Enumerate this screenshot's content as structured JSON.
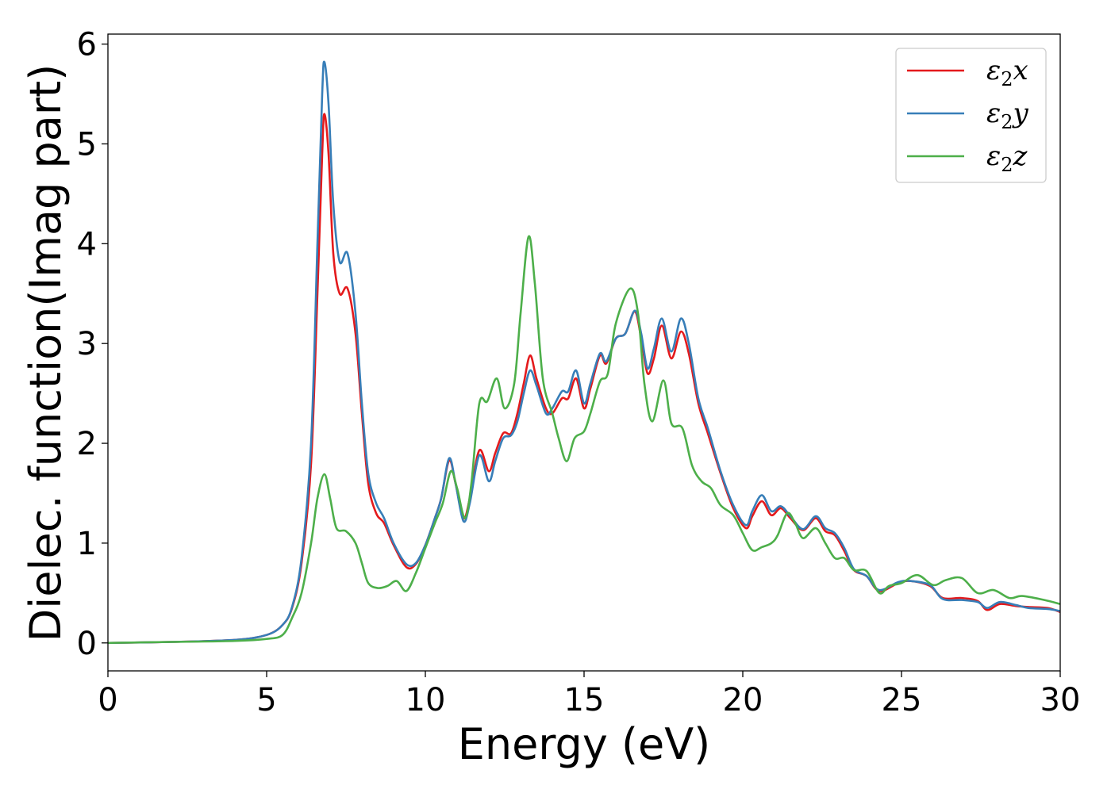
{
  "chart_data": {
    "type": "line",
    "title": "",
    "xlabel": "Energy (eV)",
    "ylabel": "Dielec. function(Imag part)",
    "xlim": [
      0,
      30
    ],
    "ylim": [
      -0.28,
      6.1
    ],
    "grid": false,
    "legend_position": "top-right",
    "x_ticks": [
      "0",
      "5",
      "10",
      "15",
      "20",
      "25",
      "30"
    ],
    "y_ticks": [
      "0",
      "1",
      "2",
      "3",
      "4",
      "5",
      "6"
    ],
    "series": [
      {
        "name": "ε₂x",
        "legend": {
          "base": "ε",
          "sub": "2",
          "comp": "x"
        },
        "color": "#e41a1c",
        "points": [
          [
            0,
            0
          ],
          [
            2,
            0.01
          ],
          [
            4,
            0.03
          ],
          [
            5,
            0.08
          ],
          [
            5.5,
            0.18
          ],
          [
            5.8,
            0.35
          ],
          [
            6.1,
            0.8
          ],
          [
            6.4,
            1.8
          ],
          [
            6.6,
            3.5
          ],
          [
            6.75,
            4.9
          ],
          [
            6.82,
            5.3
          ],
          [
            6.95,
            4.9
          ],
          [
            7.1,
            3.9
          ],
          [
            7.3,
            3.5
          ],
          [
            7.55,
            3.55
          ],
          [
            7.8,
            3.1
          ],
          [
            8.0,
            2.3
          ],
          [
            8.2,
            1.6
          ],
          [
            8.45,
            1.3
          ],
          [
            8.7,
            1.2
          ],
          [
            9.0,
            0.98
          ],
          [
            9.4,
            0.76
          ],
          [
            9.7,
            0.79
          ],
          [
            10.0,
            0.98
          ],
          [
            10.3,
            1.25
          ],
          [
            10.5,
            1.45
          ],
          [
            10.75,
            1.83
          ],
          [
            10.95,
            1.6
          ],
          [
            11.2,
            1.25
          ],
          [
            11.4,
            1.45
          ],
          [
            11.7,
            1.93
          ],
          [
            12.0,
            1.72
          ],
          [
            12.2,
            1.9
          ],
          [
            12.45,
            2.1
          ],
          [
            12.7,
            2.1
          ],
          [
            12.9,
            2.3
          ],
          [
            13.1,
            2.6
          ],
          [
            13.3,
            2.88
          ],
          [
            13.5,
            2.65
          ],
          [
            13.8,
            2.35
          ],
          [
            14.0,
            2.3
          ],
          [
            14.3,
            2.45
          ],
          [
            14.5,
            2.45
          ],
          [
            14.75,
            2.65
          ],
          [
            15.0,
            2.35
          ],
          [
            15.2,
            2.55
          ],
          [
            15.5,
            2.88
          ],
          [
            15.7,
            2.8
          ],
          [
            16.0,
            3.05
          ],
          [
            16.3,
            3.1
          ],
          [
            16.6,
            3.32
          ],
          [
            16.8,
            3.05
          ],
          [
            17.0,
            2.7
          ],
          [
            17.2,
            2.85
          ],
          [
            17.45,
            3.18
          ],
          [
            17.75,
            2.85
          ],
          [
            18.05,
            3.12
          ],
          [
            18.3,
            2.9
          ],
          [
            18.6,
            2.4
          ],
          [
            18.9,
            2.1
          ],
          [
            19.3,
            1.7
          ],
          [
            19.7,
            1.35
          ],
          [
            20.1,
            1.15
          ],
          [
            20.3,
            1.27
          ],
          [
            20.6,
            1.42
          ],
          [
            20.9,
            1.28
          ],
          [
            21.2,
            1.35
          ],
          [
            21.5,
            1.25
          ],
          [
            21.9,
            1.13
          ],
          [
            22.3,
            1.25
          ],
          [
            22.6,
            1.12
          ],
          [
            22.9,
            1.08
          ],
          [
            23.2,
            0.92
          ],
          [
            23.5,
            0.73
          ],
          [
            23.9,
            0.67
          ],
          [
            24.3,
            0.52
          ],
          [
            24.9,
            0.6
          ],
          [
            25.3,
            0.62
          ],
          [
            25.9,
            0.57
          ],
          [
            26.3,
            0.45
          ],
          [
            26.9,
            0.45
          ],
          [
            27.4,
            0.42
          ],
          [
            27.7,
            0.33
          ],
          [
            28.1,
            0.39
          ],
          [
            28.6,
            0.37
          ],
          [
            29.0,
            0.36
          ],
          [
            29.6,
            0.35
          ],
          [
            30.0,
            0.31
          ]
        ]
      },
      {
        "name": "ε₂y",
        "legend": {
          "base": "ε",
          "sub": "2",
          "comp": "y"
        },
        "color": "#377eb8",
        "points": [
          [
            0,
            0
          ],
          [
            2,
            0.01
          ],
          [
            4,
            0.03
          ],
          [
            5,
            0.08
          ],
          [
            5.5,
            0.18
          ],
          [
            5.8,
            0.36
          ],
          [
            6.1,
            0.85
          ],
          [
            6.4,
            2.0
          ],
          [
            6.6,
            4.0
          ],
          [
            6.75,
            5.5
          ],
          [
            6.82,
            5.82
          ],
          [
            6.95,
            5.4
          ],
          [
            7.1,
            4.4
          ],
          [
            7.3,
            3.82
          ],
          [
            7.55,
            3.9
          ],
          [
            7.8,
            3.3
          ],
          [
            8.0,
            2.4
          ],
          [
            8.2,
            1.7
          ],
          [
            8.45,
            1.4
          ],
          [
            8.7,
            1.25
          ],
          [
            9.0,
            1.0
          ],
          [
            9.4,
            0.79
          ],
          [
            9.7,
            0.8
          ],
          [
            10.0,
            0.98
          ],
          [
            10.3,
            1.25
          ],
          [
            10.5,
            1.45
          ],
          [
            10.75,
            1.85
          ],
          [
            10.95,
            1.6
          ],
          [
            11.2,
            1.22
          ],
          [
            11.4,
            1.4
          ],
          [
            11.7,
            1.88
          ],
          [
            12.0,
            1.62
          ],
          [
            12.2,
            1.82
          ],
          [
            12.45,
            2.05
          ],
          [
            12.7,
            2.08
          ],
          [
            12.9,
            2.22
          ],
          [
            13.1,
            2.5
          ],
          [
            13.3,
            2.73
          ],
          [
            13.5,
            2.58
          ],
          [
            13.8,
            2.3
          ],
          [
            14.0,
            2.35
          ],
          [
            14.3,
            2.52
          ],
          [
            14.5,
            2.52
          ],
          [
            14.75,
            2.73
          ],
          [
            15.0,
            2.4
          ],
          [
            15.2,
            2.6
          ],
          [
            15.5,
            2.9
          ],
          [
            15.7,
            2.82
          ],
          [
            16.0,
            3.05
          ],
          [
            16.3,
            3.1
          ],
          [
            16.6,
            3.33
          ],
          [
            16.8,
            3.1
          ],
          [
            17.0,
            2.75
          ],
          [
            17.2,
            2.95
          ],
          [
            17.45,
            3.25
          ],
          [
            17.75,
            2.92
          ],
          [
            18.05,
            3.25
          ],
          [
            18.3,
            3.0
          ],
          [
            18.6,
            2.45
          ],
          [
            18.9,
            2.15
          ],
          [
            19.3,
            1.72
          ],
          [
            19.7,
            1.38
          ],
          [
            20.1,
            1.18
          ],
          [
            20.3,
            1.32
          ],
          [
            20.6,
            1.48
          ],
          [
            20.9,
            1.32
          ],
          [
            21.2,
            1.37
          ],
          [
            21.5,
            1.27
          ],
          [
            21.9,
            1.14
          ],
          [
            22.3,
            1.27
          ],
          [
            22.6,
            1.15
          ],
          [
            22.9,
            1.1
          ],
          [
            23.2,
            0.95
          ],
          [
            23.5,
            0.74
          ],
          [
            23.9,
            0.67
          ],
          [
            24.3,
            0.53
          ],
          [
            24.9,
            0.61
          ],
          [
            25.3,
            0.62
          ],
          [
            25.9,
            0.58
          ],
          [
            26.3,
            0.44
          ],
          [
            26.9,
            0.43
          ],
          [
            27.4,
            0.41
          ],
          [
            27.7,
            0.35
          ],
          [
            28.1,
            0.41
          ],
          [
            28.6,
            0.38
          ],
          [
            29.0,
            0.35
          ],
          [
            29.6,
            0.34
          ],
          [
            30.0,
            0.32
          ]
        ]
      },
      {
        "name": "ε₂z",
        "legend": {
          "base": "ε",
          "sub": "2",
          "comp": "z"
        },
        "color": "#4daf4a",
        "points": [
          [
            0,
            0
          ],
          [
            2,
            0.01
          ],
          [
            4,
            0.02
          ],
          [
            5,
            0.04
          ],
          [
            5.5,
            0.08
          ],
          [
            5.8,
            0.25
          ],
          [
            6.1,
            0.5
          ],
          [
            6.4,
            1.0
          ],
          [
            6.6,
            1.45
          ],
          [
            6.82,
            1.69
          ],
          [
            7.0,
            1.45
          ],
          [
            7.2,
            1.15
          ],
          [
            7.5,
            1.12
          ],
          [
            7.8,
            1.0
          ],
          [
            8.0,
            0.8
          ],
          [
            8.2,
            0.6
          ],
          [
            8.5,
            0.55
          ],
          [
            8.8,
            0.57
          ],
          [
            9.1,
            0.62
          ],
          [
            9.4,
            0.52
          ],
          [
            9.7,
            0.7
          ],
          [
            10.0,
            0.95
          ],
          [
            10.3,
            1.2
          ],
          [
            10.55,
            1.4
          ],
          [
            10.8,
            1.72
          ],
          [
            11.0,
            1.55
          ],
          [
            11.25,
            1.25
          ],
          [
            11.45,
            1.6
          ],
          [
            11.7,
            2.4
          ],
          [
            11.95,
            2.42
          ],
          [
            12.25,
            2.65
          ],
          [
            12.5,
            2.35
          ],
          [
            12.8,
            2.6
          ],
          [
            13.0,
            3.3
          ],
          [
            13.25,
            4.07
          ],
          [
            13.45,
            3.6
          ],
          [
            13.7,
            2.65
          ],
          [
            14.0,
            2.3
          ],
          [
            14.2,
            2.05
          ],
          [
            14.45,
            1.82
          ],
          [
            14.7,
            2.05
          ],
          [
            15.0,
            2.12
          ],
          [
            15.2,
            2.3
          ],
          [
            15.5,
            2.62
          ],
          [
            15.75,
            2.7
          ],
          [
            16.0,
            3.2
          ],
          [
            16.45,
            3.55
          ],
          [
            16.7,
            3.3
          ],
          [
            16.9,
            2.6
          ],
          [
            17.15,
            2.22
          ],
          [
            17.5,
            2.63
          ],
          [
            17.75,
            2.2
          ],
          [
            18.1,
            2.15
          ],
          [
            18.4,
            1.78
          ],
          [
            18.7,
            1.62
          ],
          [
            19.0,
            1.55
          ],
          [
            19.3,
            1.38
          ],
          [
            19.7,
            1.28
          ],
          [
            20.0,
            1.1
          ],
          [
            20.3,
            0.93
          ],
          [
            20.6,
            0.96
          ],
          [
            20.9,
            1.0
          ],
          [
            21.1,
            1.08
          ],
          [
            21.4,
            1.3
          ],
          [
            21.65,
            1.2
          ],
          [
            21.9,
            1.05
          ],
          [
            22.3,
            1.15
          ],
          [
            22.6,
            1.0
          ],
          [
            22.9,
            0.85
          ],
          [
            23.2,
            0.85
          ],
          [
            23.5,
            0.73
          ],
          [
            23.9,
            0.72
          ],
          [
            24.3,
            0.5
          ],
          [
            24.6,
            0.57
          ],
          [
            25.0,
            0.6
          ],
          [
            25.5,
            0.68
          ],
          [
            26.0,
            0.58
          ],
          [
            26.4,
            0.63
          ],
          [
            26.9,
            0.65
          ],
          [
            27.4,
            0.5
          ],
          [
            27.9,
            0.53
          ],
          [
            28.4,
            0.45
          ],
          [
            28.8,
            0.47
          ],
          [
            29.5,
            0.43
          ],
          [
            30.0,
            0.39
          ]
        ]
      }
    ]
  }
}
